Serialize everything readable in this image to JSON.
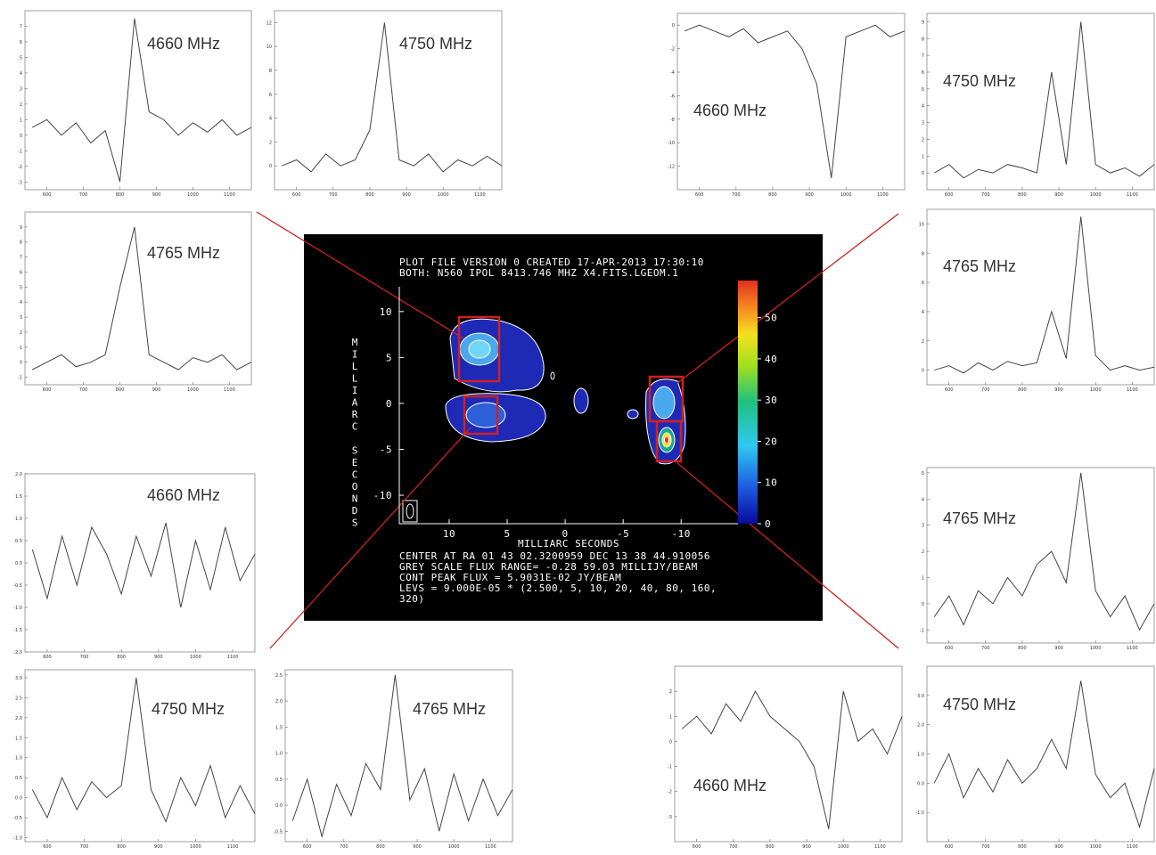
{
  "chart_data": [
    {
      "type": "line",
      "annotation": "4660 MHz",
      "xlim": [
        540,
        1160
      ],
      "ylim": [
        -3.5,
        8
      ],
      "xticks": [
        600,
        700,
        800,
        900,
        1000,
        1100
      ],
      "yticks": [
        -3,
        -2,
        -1,
        0,
        1,
        2,
        3,
        4,
        5,
        6,
        7
      ],
      "x": [
        560,
        600,
        640,
        680,
        720,
        760,
        800,
        840,
        880,
        920,
        960,
        1000,
        1040,
        1080,
        1120,
        1160
      ],
      "values": [
        0.5,
        1,
        0,
        0.8,
        -0.5,
        0.3,
        -3,
        7.5,
        1.5,
        1,
        0,
        0.8,
        0.2,
        1,
        0,
        0.5
      ],
      "color": "#444444"
    },
    {
      "type": "line",
      "annotation": "4750 MHz",
      "xlim": [
        540,
        1160
      ],
      "ylim": [
        -2,
        13
      ],
      "xticks": [
        600,
        700,
        800,
        900,
        1000,
        1100
      ],
      "yticks": [
        0,
        2,
        4,
        6,
        8,
        10,
        12
      ],
      "x": [
        560,
        600,
        640,
        680,
        720,
        760,
        800,
        840,
        880,
        920,
        960,
        1000,
        1040,
        1080,
        1120,
        1160
      ],
      "values": [
        0,
        0.5,
        -0.5,
        1,
        0,
        0.5,
        3,
        12,
        0.5,
        0,
        1,
        -0.5,
        0.5,
        0,
        0.8,
        0
      ],
      "color": "#444444"
    },
    {
      "type": "line",
      "annotation": "4765 MHz",
      "xlim": [
        540,
        1160
      ],
      "ylim": [
        -1.5,
        10
      ],
      "xticks": [
        600,
        700,
        800,
        900,
        1000,
        1100
      ],
      "yticks": [
        -1,
        0,
        1,
        2,
        3,
        4,
        5,
        6,
        7,
        8,
        9
      ],
      "x": [
        560,
        600,
        640,
        680,
        720,
        760,
        800,
        840,
        880,
        920,
        960,
        1000,
        1040,
        1080,
        1120,
        1160
      ],
      "values": [
        -0.5,
        0,
        0.5,
        -0.3,
        0,
        0.5,
        5,
        9,
        0.5,
        0,
        -0.5,
        0.3,
        0,
        0.5,
        -0.5,
        0
      ],
      "color": "#444444"
    },
    {
      "type": "line",
      "annotation": "4660 MHz",
      "xlim": [
        540,
        1160
      ],
      "ylim": [
        -2,
        2
      ],
      "xticks": [
        600,
        700,
        800,
        900,
        1000,
        1100
      ],
      "yticks": [
        {
          "value": -2,
          "label": "-2.0"
        },
        -1.5,
        {
          "value": -1,
          "label": "-1.0"
        },
        -0.5,
        {
          "value": 0,
          "label": "0.0"
        },
        0.5,
        {
          "value": 1,
          "label": "1.0"
        },
        1.5,
        {
          "value": 2,
          "label": "2.0"
        }
      ],
      "x": [
        560,
        600,
        640,
        680,
        720,
        760,
        800,
        840,
        880,
        920,
        960,
        1000,
        1040,
        1080,
        1120,
        1160
      ],
      "values": [
        0.3,
        -0.8,
        0.6,
        -0.5,
        0.8,
        0.2,
        -0.7,
        0.6,
        -0.3,
        0.9,
        -1,
        0.5,
        -0.6,
        0.8,
        -0.4,
        0.2
      ],
      "color": "#444444"
    },
    {
      "type": "line",
      "annotation": "4750 MHz",
      "xlim": [
        540,
        1160
      ],
      "ylim": [
        -1.1,
        3.2
      ],
      "xticks": [
        600,
        700,
        800,
        900,
        1000,
        1100
      ],
      "yticks": [
        {
          "value": -1,
          "label": "-1.0"
        },
        -0.5,
        {
          "value": 0,
          "label": "0.0"
        },
        0.5,
        {
          "value": 1,
          "label": "1.0"
        },
        1.5,
        {
          "value": 2,
          "label": "2.0"
        },
        2.5,
        {
          "value": 3,
          "label": "3.0"
        }
      ],
      "x": [
        560,
        600,
        640,
        680,
        720,
        760,
        800,
        840,
        880,
        920,
        960,
        1000,
        1040,
        1080,
        1120,
        1160
      ],
      "values": [
        0.2,
        -0.5,
        0.5,
        -0.3,
        0.4,
        0,
        0.3,
        3,
        0.2,
        -0.6,
        0.5,
        -0.2,
        0.8,
        -0.5,
        0.3,
        -0.4
      ],
      "color": "#444444"
    },
    {
      "type": "line",
      "annotation": "4765 MHz",
      "xlim": [
        540,
        1160
      ],
      "ylim": [
        -0.7,
        2.6
      ],
      "xticks": [
        600,
        700,
        800,
        900,
        1000,
        1100
      ],
      "yticks": [
        -0.5,
        {
          "value": 0,
          "label": "0.0"
        },
        0.5,
        {
          "value": 1,
          "label": "1.0"
        },
        1.5,
        {
          "value": 2,
          "label": "2.0"
        },
        2.5
      ],
      "x": [
        560,
        600,
        640,
        680,
        720,
        760,
        800,
        840,
        880,
        920,
        960,
        1000,
        1040,
        1080,
        1120,
        1160
      ],
      "values": [
        -0.3,
        0.5,
        -0.6,
        0.4,
        -0.2,
        0.8,
        0.3,
        2.5,
        0.1,
        0.7,
        -0.5,
        0.6,
        -0.3,
        0.5,
        -0.2,
        0.3
      ],
      "color": "#444444"
    },
    {
      "type": "line",
      "annotation": "4660 MHz",
      "xlim": [
        540,
        1160
      ],
      "ylim": [
        -14,
        1
      ],
      "xticks": [
        600,
        700,
        800,
        900,
        1000,
        1100
      ],
      "yticks": [
        -12,
        -10,
        -8,
        -6,
        -4,
        -2,
        0
      ],
      "x": [
        560,
        600,
        640,
        680,
        720,
        760,
        800,
        840,
        880,
        920,
        960,
        1000,
        1040,
        1080,
        1120,
        1160
      ],
      "values": [
        -0.5,
        0,
        -0.5,
        -1,
        -0.3,
        -1.5,
        -1,
        -0.5,
        -2,
        -5,
        -13,
        -1,
        -0.5,
        0,
        -1,
        -0.5
      ],
      "color": "#444444"
    },
    {
      "type": "line",
      "annotation": "4750 MHz",
      "xlim": [
        540,
        1160
      ],
      "ylim": [
        -1,
        9.5
      ],
      "xticks": [
        600,
        700,
        800,
        900,
        1000,
        1100
      ],
      "yticks": [
        0,
        1,
        2,
        3,
        4,
        5,
        6,
        7,
        8,
        9
      ],
      "x": [
        560,
        600,
        640,
        680,
        720,
        760,
        800,
        840,
        880,
        920,
        960,
        1000,
        1040,
        1080,
        1120,
        1160
      ],
      "values": [
        0,
        0.5,
        -0.3,
        0.2,
        0,
        0.5,
        0.3,
        0,
        6,
        0.5,
        9,
        0.5,
        0,
        0.3,
        -0.2,
        0.5
      ],
      "color": "#444444"
    },
    {
      "type": "line",
      "annotation": "4765 MHz",
      "xlim": [
        540,
        1160
      ],
      "ylim": [
        -1,
        11
      ],
      "xticks": [
        600,
        700,
        800,
        900,
        1000,
        1100
      ],
      "yticks": [
        0,
        2,
        4,
        6,
        8,
        10
      ],
      "x": [
        560,
        600,
        640,
        680,
        720,
        760,
        800,
        840,
        880,
        920,
        960,
        1000,
        1040,
        1080,
        1120,
        1160
      ],
      "values": [
        0,
        0.3,
        -0.2,
        0.5,
        0,
        0.6,
        0.3,
        0.5,
        4,
        0.8,
        10.5,
        1,
        0,
        0.3,
        0,
        0.2
      ],
      "color": "#444444"
    },
    {
      "type": "line",
      "annotation": "4765 MHz",
      "xlim": [
        540,
        1160
      ],
      "ylim": [
        -1.5,
        5.2
      ],
      "xticks": [
        600,
        700,
        800,
        900,
        1000,
        1100
      ],
      "yticks": [
        -1,
        0,
        1,
        2,
        3,
        4,
        5
      ],
      "x": [
        560,
        600,
        640,
        680,
        720,
        760,
        800,
        840,
        880,
        920,
        960,
        1000,
        1040,
        1080,
        1120,
        1160
      ],
      "values": [
        -0.5,
        0.3,
        -0.8,
        0.5,
        0,
        1,
        0.3,
        1.5,
        2,
        0.8,
        5,
        0.5,
        -0.5,
        0.3,
        -1,
        0
      ],
      "color": "#444444"
    },
    {
      "type": "line",
      "annotation": "4660 MHz",
      "xlim": [
        540,
        1160
      ],
      "ylim": [
        -4,
        3
      ],
      "xticks": [
        600,
        700,
        800,
        900,
        1000,
        1100
      ],
      "yticks": [
        -3,
        -2,
        -1,
        0,
        1,
        2
      ],
      "x": [
        560,
        600,
        640,
        680,
        720,
        760,
        800,
        840,
        880,
        920,
        960,
        1000,
        1040,
        1080,
        1120,
        1160
      ],
      "values": [
        0.5,
        1,
        0.3,
        1.5,
        0.8,
        2,
        1,
        0.5,
        0,
        -1,
        -3.5,
        2,
        0,
        0.5,
        -0.5,
        1
      ],
      "color": "#444444"
    },
    {
      "type": "line",
      "annotation": "4750 MHz",
      "xlim": [
        540,
        1160
      ],
      "ylim": [
        -2,
        4
      ],
      "xticks": [
        600,
        700,
        800,
        900,
        1000,
        1100
      ],
      "yticks": [
        {
          "value": -1,
          "label": "-1.0"
        },
        {
          "value": 0,
          "label": "0.0"
        },
        {
          "value": 1,
          "label": "1.0"
        },
        {
          "value": 2,
          "label": "2.0"
        },
        {
          "value": 3,
          "label": "3.0"
        }
      ],
      "x": [
        560,
        600,
        640,
        680,
        720,
        760,
        800,
        840,
        880,
        920,
        960,
        1000,
        1040,
        1080,
        1120,
        1160
      ],
      "values": [
        0,
        1,
        -0.5,
        0.5,
        -0.3,
        0.8,
        0,
        0.5,
        1.5,
        0.5,
        3.5,
        0.3,
        -0.5,
        0,
        -1.5,
        0.5
      ],
      "color": "#444444"
    },
    {
      "type": "contour",
      "header_lines": [
        "PLOT FILE VERSION 0  CREATED 17-APR-2013 17:30:10",
        "BOTH: N560  IPOL  8413.746 MHZ  X4.FITS.LGEOM.1"
      ],
      "footer_lines": [
        "CENTER AT RA 01 43 02.3200959  DEC 13 38 44.910056",
        "GREY SCALE FLUX RANGE= -0.28 59.03 MILLIJY/BEAM",
        "CONT PEAK FLUX =  5.9031E-02 JY/BEAM",
        "LEVS = 9.000E-05 * (2.500, 5, 10, 20, 40, 80, 160,",
        "320)"
      ],
      "xlabel": "MILLIARC SECONDS",
      "ylabel": "MILLIARC SECONDS",
      "xlim": [
        14.3,
        -14.9
      ],
      "ylim": [
        -13.1,
        12.7
      ],
      "xticks": [
        10,
        5,
        0,
        -5,
        -10
      ],
      "yticks": [
        10,
        5,
        0,
        -5,
        -10
      ],
      "clim": [
        0,
        59
      ],
      "cticks": [
        0,
        10,
        20,
        30,
        40,
        50
      ]
    }
  ]
}
